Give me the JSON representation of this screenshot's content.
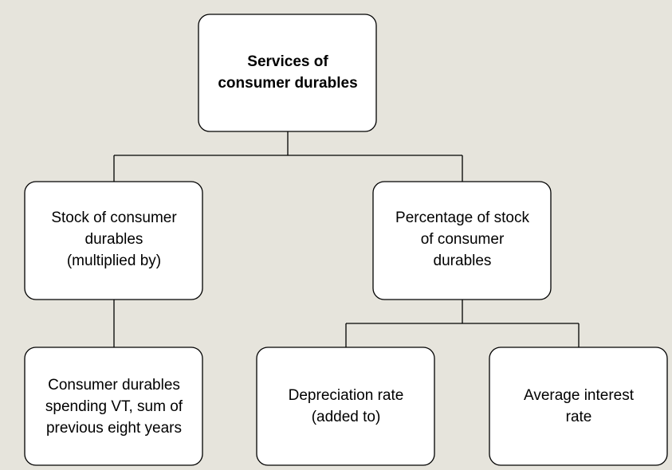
{
  "nodes": [
    {
      "lines": [
        "Services of",
        "consumer durables"
      ]
    },
    {
      "lines": [
        "Stock of consumer",
        "durables",
        "(multiplied by)"
      ]
    },
    {
      "lines": [
        "Percentage of stock",
        "of consumer",
        "durables"
      ]
    },
    {
      "lines": [
        "Consumer durables",
        "spending VT, sum of",
        "previous eight years"
      ]
    },
    {
      "lines": [
        "Depreciation rate",
        "(added to)"
      ]
    },
    {
      "lines": [
        "Average interest",
        "rate"
      ]
    }
  ]
}
